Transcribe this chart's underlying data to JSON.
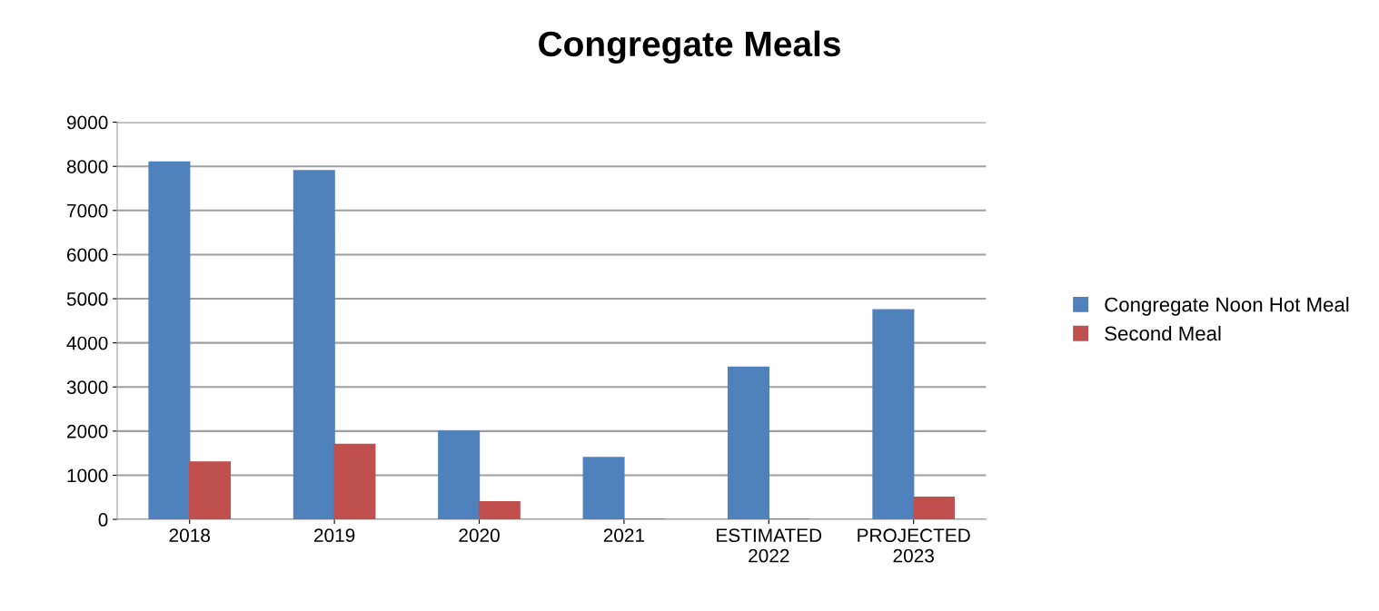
{
  "chart_data": {
    "type": "bar",
    "title": "Congregate Meals",
    "categories": [
      "2018",
      "2019",
      "2020",
      "2021",
      "ESTIMATED\n2022",
      "PROJECTED\n2023"
    ],
    "series": [
      {
        "name": "Congregate Noon Hot Meal",
        "color": "#4f81bd",
        "values": [
          8100,
          7900,
          2000,
          1400,
          3450,
          4750
        ]
      },
      {
        "name": "Second Meal",
        "color": "#c0504d",
        "values": [
          1300,
          1700,
          400,
          0,
          0,
          500
        ]
      }
    ],
    "ylim": [
      0,
      9000
    ],
    "yticks": [
      0,
      1000,
      2000,
      3000,
      4000,
      5000,
      6000,
      7000,
      8000,
      9000
    ],
    "grid": "y",
    "legend": "right"
  }
}
